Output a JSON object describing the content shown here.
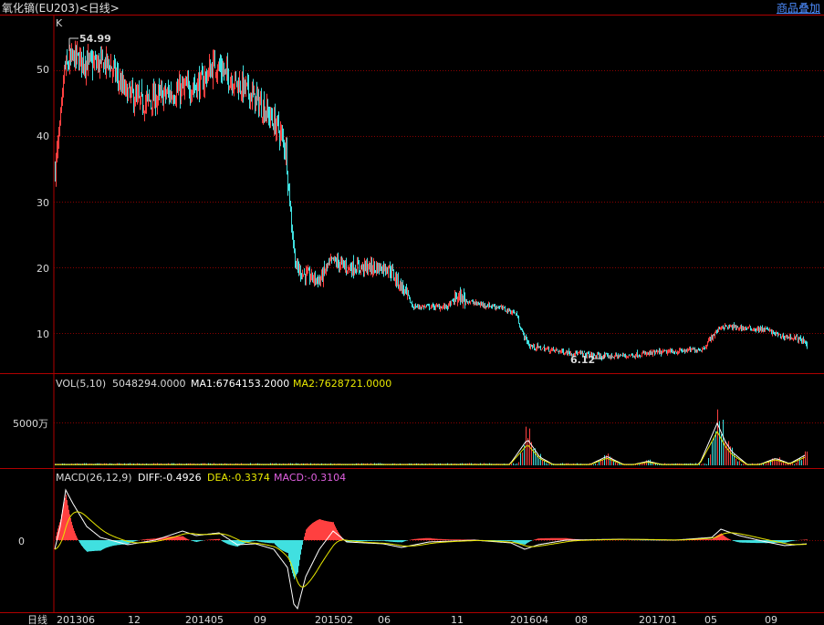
{
  "header": {
    "title": "氧化镝(EU203)<日线>",
    "overlay_button": "商品叠加"
  },
  "price_panel": {
    "label": "K",
    "y_ticks": [
      "50",
      "40",
      "30",
      "20",
      "10"
    ],
    "high_label": "54.99",
    "low_label": "6.12"
  },
  "volume_panel": {
    "name": "VOL(5,10)",
    "value": "5048294.0000",
    "ma1": "MA1:6764153.2000",
    "ma2": "MA2:7628721.0000",
    "y_tick": "5000万"
  },
  "macd_panel": {
    "name": "MACD(26,12,9)",
    "diff": "DIFF:-0.4926",
    "dea": "DEA:-0.3374",
    "macd": "MACD:-0.3104",
    "zero": "0"
  },
  "x_axis": {
    "period_label": "日线",
    "ticks": [
      "201306",
      "12",
      "201405",
      "09",
      "201502",
      "06",
      "11",
      "201604",
      "08",
      "201701",
      "05",
      "09"
    ]
  },
  "colors": {
    "up": "#ff4040",
    "down": "#40e0e0",
    "grid": "#8a0000",
    "ma2": "#e8e800"
  },
  "chart_data": [
    {
      "type": "candlestick",
      "title": "氧化镝(EU203) 日线 K",
      "ylim": [
        5,
        57
      ],
      "x": [
        "2013-06",
        "2013-08",
        "2013-10",
        "2013-12",
        "2014-02",
        "2014-04",
        "2014-06",
        "2014-08",
        "2014-10",
        "2014-12",
        "2015-01",
        "2015-03",
        "2015-05",
        "2015-07",
        "2015-09",
        "2015-11",
        "2016-01",
        "2016-03",
        "2016-05",
        "2016-07",
        "2016-09",
        "2016-11",
        "2017-01",
        "2017-03",
        "2017-05",
        "2017-07",
        "2017-09",
        "2017-11"
      ],
      "close": [
        35,
        51,
        51,
        50,
        45,
        46,
        47,
        50,
        45,
        40,
        21,
        18,
        21,
        20,
        14,
        14,
        15,
        13,
        8,
        7.5,
        6.5,
        6.8,
        7.2,
        7.8,
        10.8,
        10.5,
        10.2,
        8.0
      ],
      "high_mark": 54.99,
      "low_mark": 6.12
    },
    {
      "type": "bar",
      "title": "VOL(5,10)",
      "values": [
        5048294.0,
        6764153.2,
        7628721.0
      ],
      "labels": [
        "VOL",
        "MA1",
        "MA2"
      ]
    },
    {
      "type": "line",
      "title": "MACD(26,12,9)",
      "series": [
        {
          "name": "DIFF",
          "value": -0.4926
        },
        {
          "name": "DEA",
          "value": -0.3374
        },
        {
          "name": "MACD",
          "value": -0.3104
        }
      ]
    }
  ]
}
